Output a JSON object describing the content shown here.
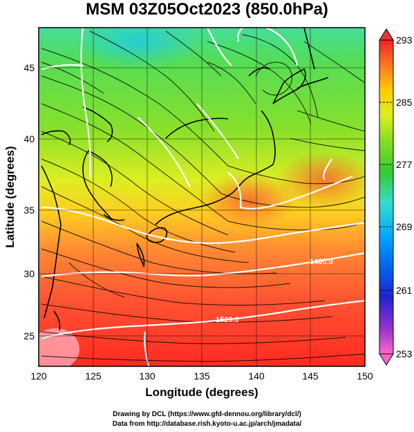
{
  "title": "MSM 03Z05Oct2023 (850.0hPa)",
  "credits": {
    "line1": "Drawing by DCL (https://www.gfd-dennou.org/library/dcl/)",
    "line2": "Data from http://database.rish.kyoto-u.ac.jp/arch/jmadata/"
  },
  "map": {
    "xlabel": "Longitude (degrees)",
    "ylabel": "Latitude  (degrees)",
    "lon_ticks": [
      "120",
      "125",
      "130",
      "135",
      "140",
      "145",
      "150"
    ],
    "lat_ticks": [
      "25",
      "30",
      "35",
      "40",
      "45"
    ],
    "contour_labels": [
      "1460.0",
      "1520.0"
    ]
  },
  "colorbar": {
    "ticks": [
      "293",
      "285",
      "277",
      "269",
      "261",
      "253"
    ],
    "colors": [
      "#ff66cc",
      "#6633cc",
      "#0033cc",
      "#0099ff",
      "#33ddcc",
      "#33cc33",
      "#66dd22",
      "#ccee22",
      "#ffdd00",
      "#ff9900",
      "#ff4400",
      "#ee2222"
    ]
  }
}
